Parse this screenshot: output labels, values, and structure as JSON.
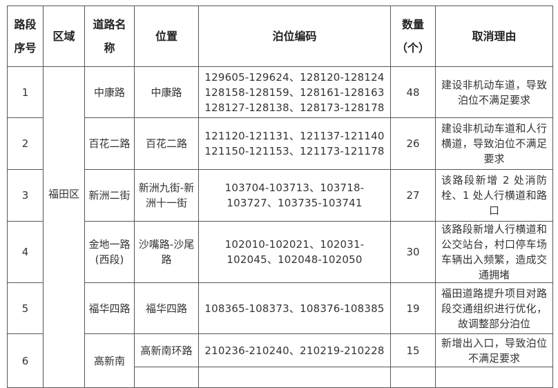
{
  "headers": [
    "路段序号",
    "区域",
    "道路名称",
    "位置",
    "泊位编码",
    "数量（个）",
    "取消理由"
  ],
  "area": "福田区",
  "rows": [
    {
      "seq": "1",
      "road": "中康路",
      "location": "中康路",
      "codes": [
        "129605-129624、128120-128124",
        "128158-128159、128161-128163",
        "128127-128138、128173-128178"
      ],
      "count": "48",
      "reason": "建设非机动车道，导致泊位不满足要求"
    },
    {
      "seq": "2",
      "road": "百花二路",
      "location": "百花二路",
      "codes": [
        "121120-121131、121137-121140",
        "121150-121153、121173-121178"
      ],
      "count": "26",
      "reason": "建设非机动车道和人行横道，导致泊位不满足要求"
    },
    {
      "seq": "3",
      "road": "新洲二街",
      "location": "新洲九街-新洲十一街",
      "codes": [
        "103704-103713、103718-",
        "103727、103735-103741"
      ],
      "count": "27",
      "reason": "该路段新增 2 处消防栓、1 处人行横道和路口"
    },
    {
      "seq": "4",
      "road": "金地一路(西段)",
      "location": "沙嘴路-沙尾路",
      "codes": [
        "102010-102021、102031-",
        "102045、102048-102050"
      ],
      "count": "30",
      "reason": "该路段新增人行横道和公交站台，村口停车场车辆出入频繁，造成交通拥堵"
    },
    {
      "seq": "5",
      "road": "福华四路",
      "location": "福华四路",
      "codes": [
        "108365-108373、108376-108385"
      ],
      "count": "19",
      "reason": "福田道路提升项目对路段交通组织进行优化，故调整部分泊位"
    },
    {
      "seq": "6",
      "road": "高新南",
      "location": "高新南环路",
      "codes": [
        "210236-210240、210219-210228"
      ],
      "count": "15",
      "reason": "新增出入口，导致泊位不满足要求"
    }
  ]
}
